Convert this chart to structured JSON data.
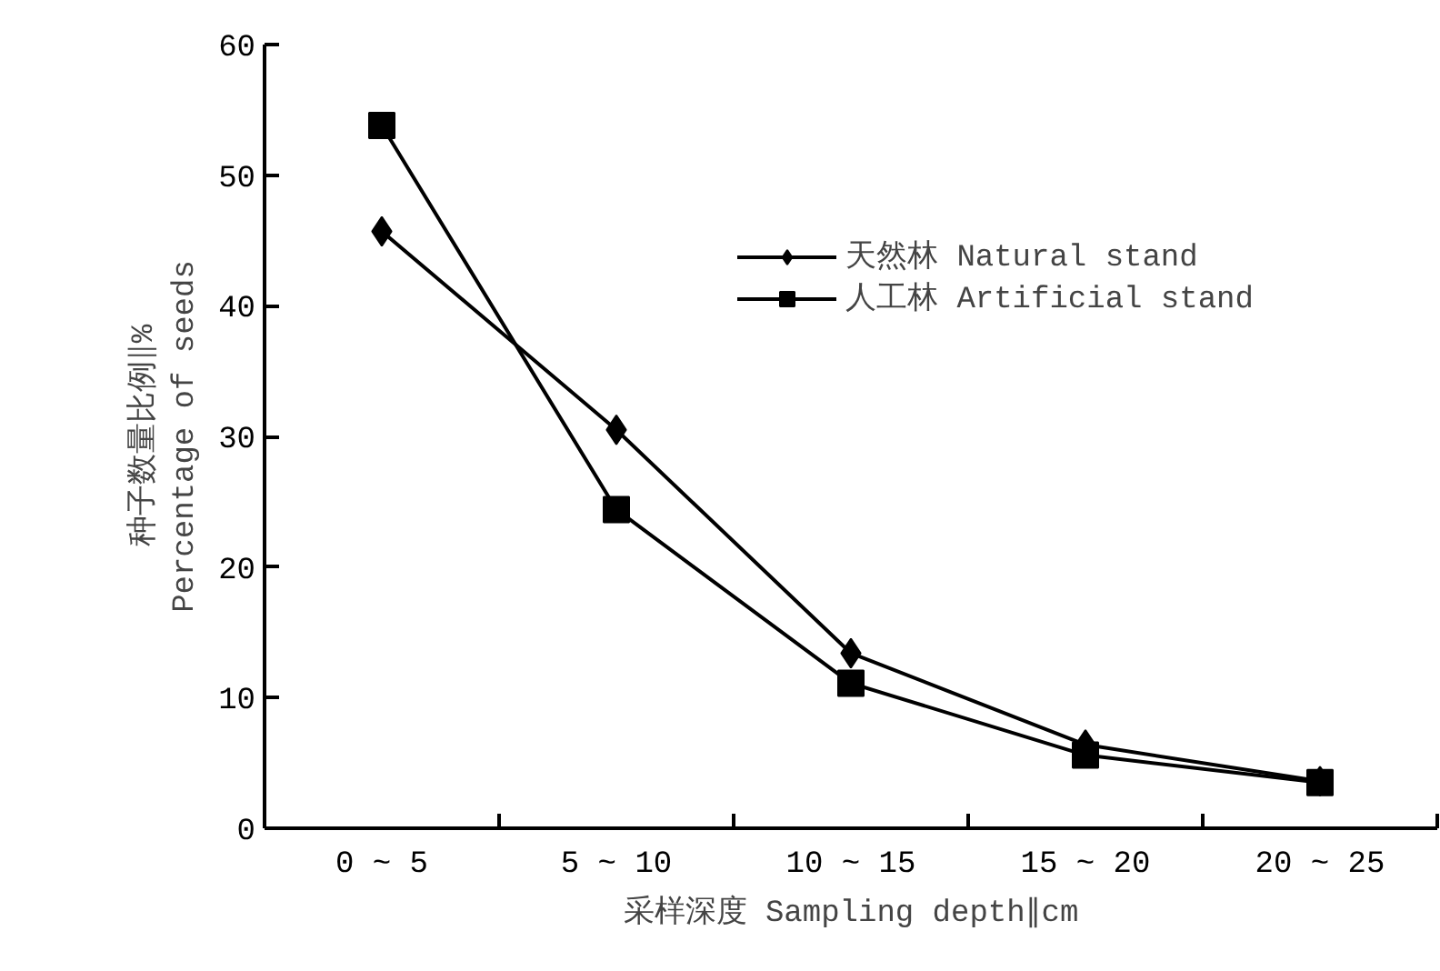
{
  "chart_data": {
    "type": "line",
    "xlabel": "采样深度 Sampling depth∥cm",
    "ylabel": "种子数量比例∥%\nPercentage of seeds",
    "categories": [
      "0 ~ 5",
      "5 ~ 10",
      "10 ~ 15",
      "15 ~ 20",
      "20 ~ 25"
    ],
    "series": [
      {
        "name": "天然林 Natural stand",
        "color": "#000000",
        "marker": "diamond",
        "values": [
          45.7,
          30.5,
          13.4,
          6.4,
          3.6
        ]
      },
      {
        "name": "人工林 Artificial stand",
        "color": "#000000",
        "marker": "square",
        "values": [
          53.8,
          24.4,
          11.1,
          5.6,
          3.5
        ]
      }
    ],
    "ylim": [
      0,
      60
    ],
    "yticks": [
      0,
      10,
      20,
      30,
      40,
      50,
      60
    ],
    "grid": false,
    "legend": "top right",
    "line_style": "solid"
  }
}
